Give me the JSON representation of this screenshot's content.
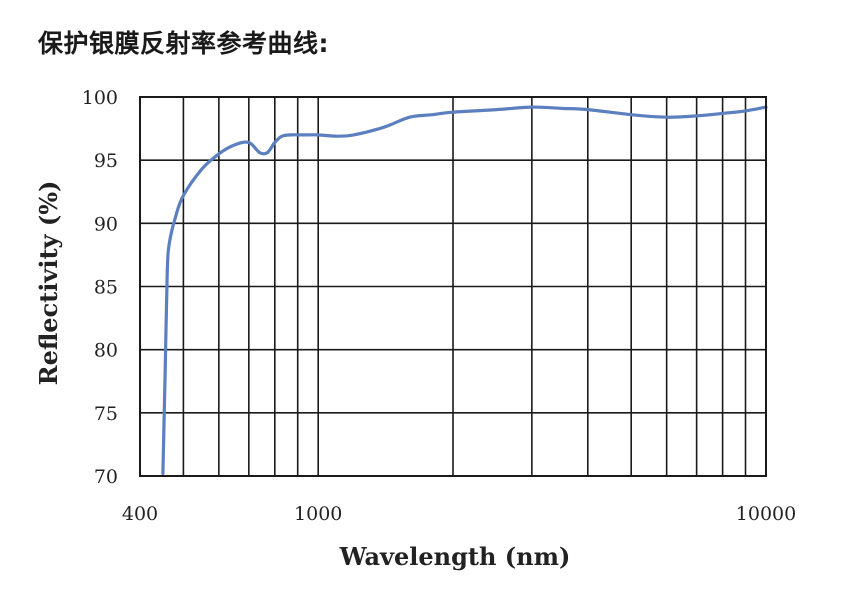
{
  "page": {
    "title": "保护银膜反射率参考曲线:"
  },
  "chart_data": {
    "type": "line",
    "xlabel": "Wavelength (nm)",
    "ylabel": "Reflectivity (%)",
    "x_scale": "log",
    "xlim": [
      400,
      10000
    ],
    "ylim": [
      70,
      100
    ],
    "x_tick_labels": [
      "400",
      "1000",
      "10000"
    ],
    "y_tick_labels": [
      "70",
      "75",
      "80",
      "85",
      "90",
      "95",
      "100"
    ],
    "x_gridlines": [
      400,
      500,
      600,
      700,
      800,
      900,
      1000,
      2000,
      3000,
      4000,
      5000,
      6000,
      7000,
      8000,
      9000,
      10000
    ],
    "y_gridlines": [
      70,
      75,
      80,
      85,
      90,
      95,
      100
    ],
    "grid": true,
    "line_color": "#5b7fbf",
    "series": [
      {
        "x": [
          450,
          455,
          460,
          465,
          480,
          500,
          550,
          600,
          650,
          700,
          740,
          770,
          800,
          830,
          870,
          930,
          1000,
          1100,
          1200,
          1400,
          1600,
          1800,
          2000,
          2500,
          3000,
          3500,
          4000,
          5000,
          6000,
          7000,
          8000,
          9000,
          10000
        ],
        "y": [
          70.2,
          78,
          86,
          88.4,
          90.5,
          92.2,
          94.3,
          95.5,
          96.2,
          96.4,
          95.6,
          95.6,
          96.4,
          96.9,
          97.0,
          97.0,
          97.0,
          96.9,
          97.0,
          97.6,
          98.4,
          98.6,
          98.8,
          99.0,
          99.2,
          99.1,
          99.0,
          98.6,
          98.4,
          98.5,
          98.7,
          98.9,
          99.2
        ]
      }
    ]
  }
}
